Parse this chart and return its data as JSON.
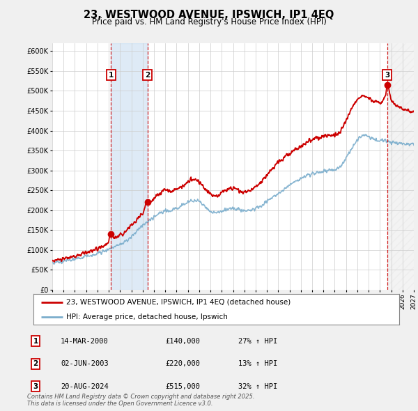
{
  "title": "23, WESTWOOD AVENUE, IPSWICH, IP1 4EQ",
  "subtitle": "Price paid vs. HM Land Registry's House Price Index (HPI)",
  "xlim_start": 1995.0,
  "xlim_end": 2027.0,
  "ylim": [
    0,
    620000
  ],
  "yticks": [
    0,
    50000,
    100000,
    150000,
    200000,
    250000,
    300000,
    350000,
    400000,
    450000,
    500000,
    550000,
    600000
  ],
  "ytick_labels": [
    "£0",
    "£50K",
    "£100K",
    "£150K",
    "£200K",
    "£250K",
    "£300K",
    "£350K",
    "£400K",
    "£450K",
    "£500K",
    "£550K",
    "£600K"
  ],
  "sale_dates": [
    2000.2,
    2003.42,
    2024.64
  ],
  "sale_prices": [
    140000,
    220000,
    515000
  ],
  "sale_labels": [
    "1",
    "2",
    "3"
  ],
  "sale_color": "#cc0000",
  "hpi_color": "#7aadcc",
  "legend_entries": [
    "23, WESTWOOD AVENUE, IPSWICH, IP1 4EQ (detached house)",
    "HPI: Average price, detached house, Ipswich"
  ],
  "table_entries": [
    {
      "label": "1",
      "date": "14-MAR-2000",
      "price": "£140,000",
      "hpi": "27% ↑ HPI"
    },
    {
      "label": "2",
      "date": "02-JUN-2003",
      "price": "£220,000",
      "hpi": "13% ↑ HPI"
    },
    {
      "label": "3",
      "date": "20-AUG-2024",
      "price": "£515,000",
      "hpi": "32% ↑ HPI"
    }
  ],
  "footer": "Contains HM Land Registry data © Crown copyright and database right 2025.\nThis data is licensed under the Open Government Licence v3.0.",
  "bg_color": "#f0f0f0",
  "plot_bg_color": "#ffffff",
  "grid_color": "#cccccc",
  "shade_region": {
    "start": 2000.2,
    "end": 2003.42
  },
  "hatch_region": {
    "start": 2024.64,
    "end": 2027.5
  }
}
